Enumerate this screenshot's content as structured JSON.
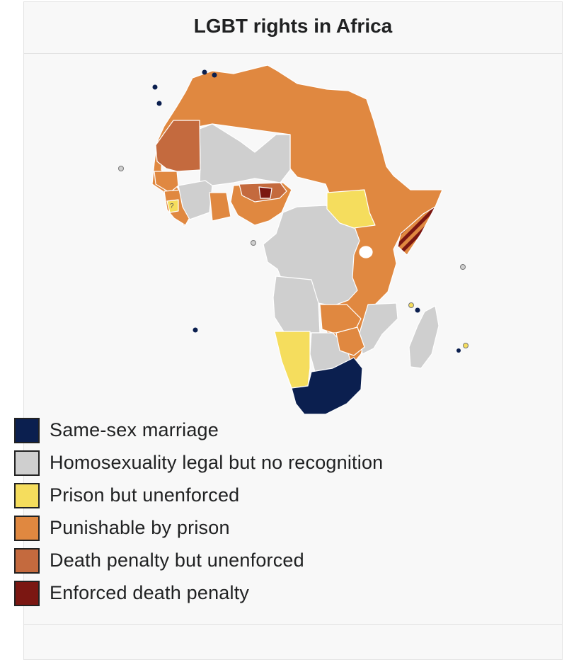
{
  "title": "LGBT rights in Africa",
  "legend": [
    {
      "key": "marriage",
      "label": "Same-sex marriage",
      "color": "#0b1f4f"
    },
    {
      "key": "legal",
      "label": "Homosexuality legal but no recognition",
      "color": "#cfcfcf"
    },
    {
      "key": "unenforced_prison",
      "label": "Prison but unenforced",
      "color": "#f5dd5d"
    },
    {
      "key": "prison",
      "label": "Punishable by prison",
      "color": "#e08840"
    },
    {
      "key": "death_unenforced",
      "label": "Death penalty but unenforced",
      "color": "#c46a3e"
    },
    {
      "key": "death",
      "label": "Enforced death penalty",
      "color": "#7b1712"
    }
  ],
  "map_labels": {
    "question_mark": "?"
  }
}
